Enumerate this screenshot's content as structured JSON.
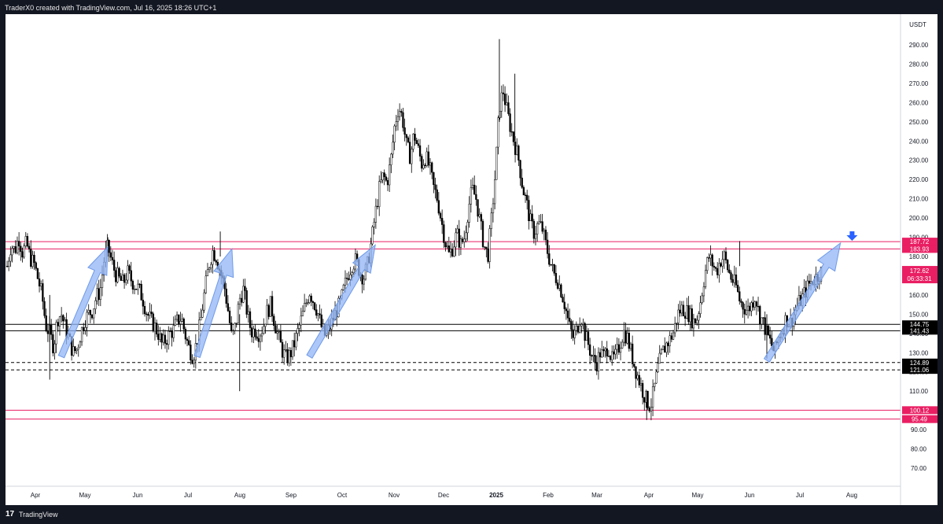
{
  "header": {
    "credit": "TraderX0 created with TradingView.com, Jul 16, 2025 18:26 UTC+1"
  },
  "footer": {
    "logo": "17",
    "brand": "TradingView"
  },
  "colors": {
    "background_dark": "#131722",
    "chart_bg": "#ffffff",
    "candle": "#000000",
    "resistance_line": "#e91e63",
    "support_line": "#000000",
    "price_label_bg": "#e91e63",
    "support_label_bg": "#000000",
    "arrow_fill": "#90b4f5",
    "marker_arrow": "#2962ff"
  },
  "chart_data": {
    "type": "candlestick",
    "currency": "USDT",
    "ylim": [
      60,
      300
    ],
    "y_ticks": [
      "70.00",
      "80.00",
      "90.00",
      "100.00",
      "110.00",
      "120.00",
      "130.00",
      "140.00",
      "150.00",
      "160.00",
      "170.00",
      "180.00",
      "190.00",
      "200.00",
      "210.00",
      "220.00",
      "230.00",
      "240.00",
      "250.00",
      "260.00",
      "270.00",
      "280.00",
      "290.00"
    ],
    "x_ticks": [
      "Apr",
      "May",
      "Jun",
      "Jul",
      "Aug",
      "Sep",
      "Oct",
      "Nov",
      "Dec",
      "2025",
      "Feb",
      "Mar",
      "Apr",
      "May",
      "Jun",
      "Jul",
      "Aug"
    ],
    "last_price": {
      "value": "172.62",
      "countdown": "06:33:31"
    },
    "horizontal_levels": [
      {
        "label": "187.72",
        "value": 187.72,
        "style": "solid",
        "color": "#e91e63"
      },
      {
        "label": "183.93",
        "value": 183.93,
        "style": "solid",
        "color": "#e91e63"
      },
      {
        "label": "144.75",
        "value": 144.75,
        "style": "solid",
        "color": "#000000"
      },
      {
        "label": "141.43",
        "value": 141.43,
        "style": "solid",
        "color": "#000000"
      },
      {
        "label": "124.89",
        "value": 124.89,
        "style": "dashed",
        "color": "#000000"
      },
      {
        "label": "121.06",
        "value": 121.06,
        "style": "dashed",
        "color": "#000000"
      },
      {
        "label": "100.12",
        "value": 100.12,
        "style": "solid",
        "color": "#e91e63"
      },
      {
        "label": "95.49",
        "value": 95.49,
        "style": "solid",
        "color": "#e91e63"
      }
    ],
    "price_path": [
      [
        0,
        175
      ],
      [
        1,
        186
      ],
      [
        2,
        183
      ],
      [
        3,
        190
      ],
      [
        4,
        182
      ],
      [
        5,
        187
      ],
      [
        6,
        179
      ],
      [
        7,
        176
      ],
      [
        8,
        168
      ],
      [
        9,
        160
      ],
      [
        10,
        144
      ],
      [
        11,
        140
      ],
      [
        12,
        133
      ],
      [
        13,
        148
      ],
      [
        14,
        150
      ],
      [
        15,
        143
      ],
      [
        16,
        137
      ],
      [
        17,
        130
      ],
      [
        18,
        132
      ],
      [
        19,
        140
      ],
      [
        20,
        147
      ],
      [
        21,
        150
      ],
      [
        22,
        152
      ],
      [
        23,
        159
      ],
      [
        24,
        162
      ],
      [
        25,
        178
      ],
      [
        26,
        185
      ],
      [
        27,
        177
      ],
      [
        28,
        171
      ],
      [
        29,
        168
      ],
      [
        30,
        166
      ],
      [
        31,
        172
      ],
      [
        32,
        168
      ],
      [
        33,
        165
      ],
      [
        34,
        163
      ],
      [
        35,
        158
      ],
      [
        36,
        151
      ],
      [
        37,
        147
      ],
      [
        38,
        144
      ],
      [
        39,
        140
      ],
      [
        40,
        134
      ],
      [
        41,
        137
      ],
      [
        42,
        140
      ],
      [
        43,
        142
      ],
      [
        44,
        147
      ],
      [
        45,
        148
      ],
      [
        46,
        139
      ],
      [
        47,
        132
      ],
      [
        48,
        128
      ],
      [
        49,
        136
      ],
      [
        50,
        148
      ],
      [
        51,
        162
      ],
      [
        52,
        175
      ],
      [
        53,
        183
      ],
      [
        54,
        180
      ],
      [
        55,
        172
      ],
      [
        56,
        165
      ],
      [
        57,
        152
      ],
      [
        58,
        137
      ],
      [
        59,
        145
      ],
      [
        60,
        158
      ],
      [
        61,
        163
      ],
      [
        62,
        150
      ],
      [
        63,
        141
      ],
      [
        64,
        142
      ],
      [
        65,
        140
      ],
      [
        66,
        143
      ],
      [
        67,
        151
      ],
      [
        68,
        155
      ],
      [
        69,
        146
      ],
      [
        70,
        138
      ],
      [
        71,
        131
      ],
      [
        72,
        127
      ],
      [
        73,
        129
      ],
      [
        74,
        134
      ],
      [
        75,
        141
      ],
      [
        76,
        148
      ],
      [
        77,
        155
      ],
      [
        78,
        162
      ],
      [
        79,
        157
      ],
      [
        80,
        152
      ],
      [
        81,
        144
      ],
      [
        82,
        139
      ],
      [
        83,
        142
      ],
      [
        84,
        147
      ],
      [
        85,
        152
      ],
      [
        86,
        156
      ],
      [
        87,
        164
      ],
      [
        88,
        171
      ],
      [
        89,
        176
      ],
      [
        90,
        178
      ],
      [
        91,
        172
      ],
      [
        92,
        169
      ],
      [
        93,
        176
      ],
      [
        94,
        188
      ],
      [
        95,
        202
      ],
      [
        96,
        215
      ],
      [
        97,
        222
      ],
      [
        98,
        218
      ],
      [
        99,
        230
      ],
      [
        100,
        248
      ],
      [
        101,
        258
      ],
      [
        102,
        252
      ],
      [
        103,
        238
      ],
      [
        104,
        232
      ],
      [
        105,
        244
      ],
      [
        106,
        236
      ],
      [
        107,
        228
      ],
      [
        108,
        232
      ],
      [
        109,
        226
      ],
      [
        110,
        216
      ],
      [
        111,
        210
      ],
      [
        112,
        199
      ],
      [
        113,
        188
      ],
      [
        114,
        181
      ],
      [
        115,
        185
      ],
      [
        116,
        192
      ],
      [
        117,
        186
      ],
      [
        118,
        190
      ],
      [
        119,
        205
      ],
      [
        120,
        215
      ],
      [
        121,
        210
      ],
      [
        122,
        198
      ],
      [
        123,
        186
      ],
      [
        124,
        180
      ],
      [
        125,
        200
      ],
      [
        126,
        225
      ],
      [
        127,
        258
      ],
      [
        128,
        266
      ],
      [
        129,
        255
      ],
      [
        130,
        246
      ],
      [
        131,
        238
      ],
      [
        132,
        230
      ],
      [
        133,
        216
      ],
      [
        134,
        208
      ],
      [
        135,
        198
      ],
      [
        136,
        192
      ],
      [
        137,
        197
      ],
      [
        138,
        195
      ],
      [
        139,
        186
      ],
      [
        140,
        178
      ],
      [
        141,
        171
      ],
      [
        142,
        168
      ],
      [
        143,
        162
      ],
      [
        144,
        154
      ],
      [
        145,
        144
      ],
      [
        146,
        138
      ],
      [
        147,
        142
      ],
      [
        148,
        150
      ],
      [
        149,
        140
      ],
      [
        150,
        134
      ],
      [
        151,
        127
      ],
      [
        152,
        124
      ],
      [
        153,
        130
      ],
      [
        154,
        128
      ],
      [
        155,
        134
      ],
      [
        156,
        126
      ],
      [
        157,
        128
      ],
      [
        158,
        134
      ],
      [
        159,
        141
      ],
      [
        160,
        138
      ],
      [
        161,
        130
      ],
      [
        162,
        122
      ],
      [
        163,
        116
      ],
      [
        164,
        110
      ],
      [
        165,
        105
      ],
      [
        166,
        102
      ],
      [
        167,
        112
      ],
      [
        168,
        123
      ],
      [
        169,
        130
      ],
      [
        170,
        134
      ],
      [
        171,
        137
      ],
      [
        172,
        141
      ],
      [
        173,
        150
      ],
      [
        174,
        153
      ],
      [
        175,
        152
      ],
      [
        176,
        150
      ],
      [
        177,
        146
      ],
      [
        178,
        148
      ],
      [
        179,
        158
      ],
      [
        180,
        171
      ],
      [
        181,
        180
      ],
      [
        182,
        176
      ],
      [
        183,
        172
      ],
      [
        184,
        178
      ],
      [
        185,
        180
      ],
      [
        186,
        173
      ],
      [
        187,
        168
      ],
      [
        188,
        165
      ],
      [
        189,
        157
      ],
      [
        190,
        154
      ],
      [
        191,
        152
      ],
      [
        192,
        155
      ],
      [
        193,
        160
      ],
      [
        194,
        150
      ],
      [
        195,
        146
      ],
      [
        196,
        140
      ],
      [
        197,
        135
      ],
      [
        198,
        130
      ],
      [
        199,
        138
      ],
      [
        200,
        142
      ],
      [
        201,
        148
      ],
      [
        202,
        145
      ],
      [
        203,
        150
      ],
      [
        204,
        155
      ],
      [
        205,
        158
      ],
      [
        206,
        162
      ],
      [
        207,
        166
      ],
      [
        208,
        168
      ],
      [
        209,
        170
      ],
      [
        210,
        172
      ]
    ],
    "annotations": [
      {
        "type": "arrow-up",
        "from": [
          14,
          128
        ],
        "to": [
          26,
          185
        ]
      },
      {
        "type": "arrow-up",
        "from": [
          49,
          128
        ],
        "to": [
          58,
          184
        ]
      },
      {
        "type": "arrow-up",
        "from": [
          78,
          128
        ],
        "to": [
          95,
          186
        ]
      },
      {
        "type": "arrow-up",
        "from": [
          196,
          126
        ],
        "to": [
          215,
          187
        ]
      },
      {
        "type": "marker-down",
        "at": [
          218,
          189
        ]
      }
    ]
  }
}
